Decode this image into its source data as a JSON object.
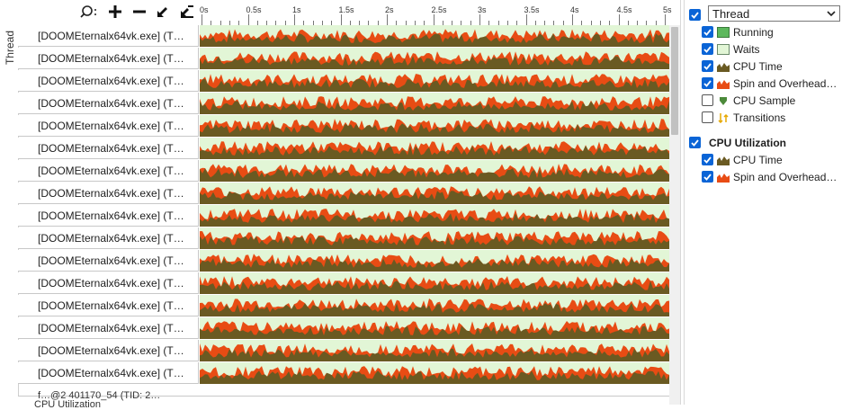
{
  "timeline": {
    "ticks": [
      "0s",
      "0.5s",
      "1s",
      "1.5s",
      "2s",
      "2.5s",
      "3s",
      "3.5s",
      "4s",
      "4.5s",
      "5s"
    ],
    "row_axis_label": "Thread",
    "rows": [
      "[DOOMEternalx64vk.exe] (T…",
      "[DOOMEternalx64vk.exe] (T…",
      "[DOOMEternalx64vk.exe] (T…",
      "[DOOMEternalx64vk.exe] (T…",
      "[DOOMEternalx64vk.exe] (T…",
      "[DOOMEternalx64vk.exe] (T…",
      "[DOOMEternalx64vk.exe] (T…",
      "[DOOMEternalx64vk.exe] (T…",
      "[DOOMEternalx64vk.exe] (T…",
      "[DOOMEternalx64vk.exe] (T…",
      "[DOOMEternalx64vk.exe] (T…",
      "[DOOMEternalx64vk.exe] (T…",
      "[DOOMEternalx64vk.exe] (T…",
      "[DOOMEternalx64vk.exe] (T…",
      "[DOOMEternalx64vk.exe] (T…",
      "[DOOMEternalx64vk.exe] (T…"
    ],
    "partial_row_label": "f…@2 401170_54 (TID: 2…",
    "bottom_label": "CPU Utilization"
  },
  "toolbar": {
    "search_icon": "magnifier-icon",
    "zoom_in_icon": "plus-icon",
    "zoom_out_icon": "minus-icon",
    "zoom_fit_icon": "arrow-icon",
    "zoom_reset_icon": "arrow-stack-icon"
  },
  "legend": {
    "thread_group": {
      "label": "Thread",
      "checked": true
    },
    "thread_items": [
      {
        "label": "Running",
        "checked": true,
        "icon": "running-swatch-icon"
      },
      {
        "label": "Waits",
        "checked": true,
        "icon": "waits-swatch-icon"
      },
      {
        "label": "CPU Time",
        "checked": true,
        "icon": "cpu-time-area-icon"
      },
      {
        "label": "Spin and Overhead…",
        "checked": true,
        "icon": "spin-area-icon"
      },
      {
        "label": "CPU Sample",
        "checked": false,
        "icon": "cpu-sample-marker-icon"
      },
      {
        "label": "Transitions",
        "checked": false,
        "icon": "transitions-arrows-icon"
      }
    ],
    "cpu_group": {
      "label": "CPU Utilization",
      "checked": true
    },
    "cpu_items": [
      {
        "label": "CPU Time",
        "checked": true,
        "icon": "cpu-time-area-icon"
      },
      {
        "label": "Spin and Overhead…",
        "checked": true,
        "icon": "spin-area-icon"
      }
    ]
  },
  "colors": {
    "running": "#5cb85c",
    "waits": "#e2f6d6",
    "cpu_time": "#6a5a22",
    "spin": "#e84c14",
    "accent": "#0a64d6"
  }
}
